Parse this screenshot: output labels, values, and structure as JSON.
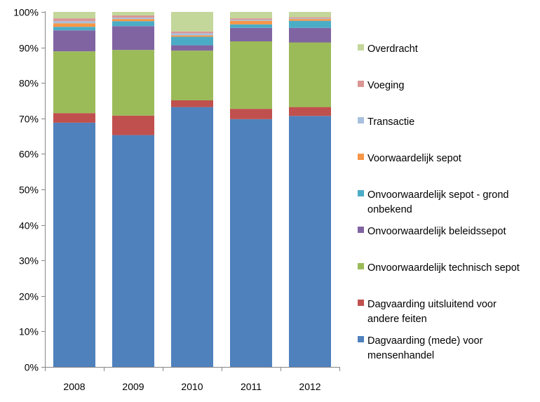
{
  "chart_data": {
    "type": "bar",
    "stacked": true,
    "categories": [
      "2008",
      "2009",
      "2010",
      "2011",
      "2012"
    ],
    "ylim": [
      0,
      100
    ],
    "yticks": [
      "0%",
      "10%",
      "20%",
      "30%",
      "40%",
      "50%",
      "60%",
      "70%",
      "80%",
      "90%",
      "100%"
    ],
    "grid": false,
    "legend_position": "right",
    "series": [
      {
        "name": "Dagvaarding (mede) voor mensenhandel",
        "legend_lines": [
          "Dagvaarding (mede) voor",
          "mensenhandel"
        ],
        "color": "#4F81BD",
        "values": [
          68.8,
          65.3,
          73.2,
          69.8,
          70.7
        ]
      },
      {
        "name": "Dagvaarding uitsluitend voor andere feiten",
        "legend_lines": [
          "Dagvaarding uitsluitend voor",
          "andere feiten"
        ],
        "color": "#C0504D",
        "values": [
          2.7,
          5.5,
          1.9,
          2.9,
          2.5
        ]
      },
      {
        "name": "Onvoorwaardelijk technisch sepot",
        "legend_lines": [
          "Onvoorwaardelijk technisch sepot"
        ],
        "color": "#9BBB59",
        "values": [
          17.4,
          18.5,
          14.0,
          19.0,
          18.2
        ]
      },
      {
        "name": "Onvoorwaardelijk beleidssepot",
        "legend_lines": [
          "Onvoorwaardelijk beleidssepot"
        ],
        "color": "#8064A2",
        "values": [
          5.9,
          6.7,
          1.5,
          3.8,
          4.1
        ]
      },
      {
        "name": "Onvoorwaardelijk sepot - grond onbekend",
        "legend_lines": [
          "Onvoorwaardelijk sepot - grond",
          "onbekend"
        ],
        "color": "#4BACC6",
        "values": [
          1.0,
          1.4,
          2.4,
          1.0,
          2.0
        ]
      },
      {
        "name": "Voorwaardelijk sepot",
        "legend_lines": [
          "Voorwaardelijk sepot"
        ],
        "color": "#F79646",
        "values": [
          1.0,
          0.6,
          0.4,
          1.0,
          0.5
        ]
      },
      {
        "name": "Transactie",
        "legend_lines": [
          "Transactie"
        ],
        "color": "#A7C0DE",
        "values": [
          0.6,
          0.4,
          0.6,
          0.3,
          0.2
        ]
      },
      {
        "name": "Voeging",
        "legend_lines": [
          "Voeging"
        ],
        "color": "#DA9694",
        "values": [
          0.8,
          0.6,
          0.5,
          0.4,
          0.3
        ]
      },
      {
        "name": "Overdracht",
        "legend_lines": [
          "Overdracht"
        ],
        "color": "#C4D79B",
        "values": [
          1.8,
          1.0,
          5.5,
          1.8,
          1.5
        ]
      }
    ]
  }
}
